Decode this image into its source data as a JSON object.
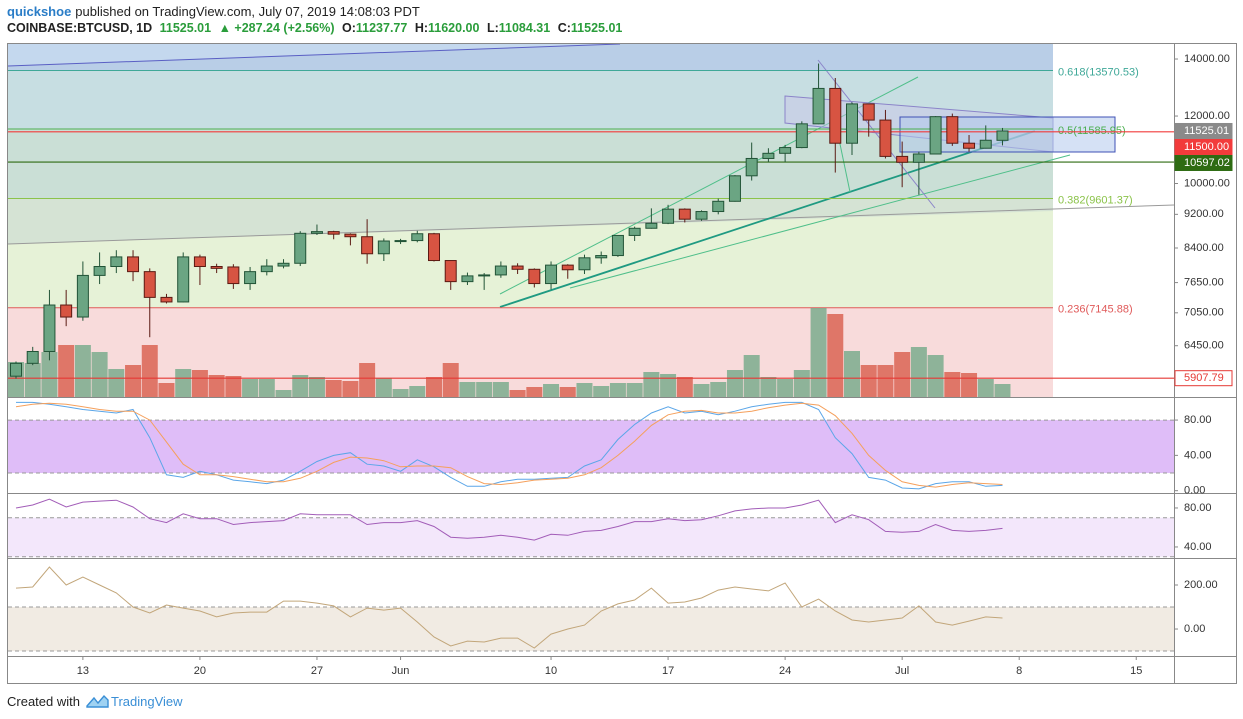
{
  "header": {
    "author": "quickshoe",
    "published": "published on TradingView.com, July 07, 2019 14:08:03 PDT",
    "symbol": "COINBASE:BTCUSD, 1D",
    "price": "11525.01",
    "change": "▲ +287.24 (+2.56%)",
    "ohlc": [
      {
        "key": "O:",
        "value": "11237.77"
      },
      {
        "key": "H:",
        "value": "11620.00"
      },
      {
        "key": "L:",
        "value": "11084.31"
      },
      {
        "key": "C:",
        "value": "11525.01"
      }
    ]
  },
  "footer": {
    "created": "Created with",
    "brand": "TradingView"
  },
  "chart_data": [
    {
      "type": "candlestick",
      "log_scale": true,
      "up_color": "#6ba583",
      "down_color": "#d75442",
      "up_border": "#225437",
      "down_border": "#5b1a13",
      "categories": [
        "05-09",
        "05-10",
        "05-11",
        "05-12",
        "05-13",
        "05-14",
        "05-15",
        "05-16",
        "05-17",
        "05-18",
        "05-19",
        "05-20",
        "05-21",
        "05-22",
        "05-23",
        "05-24",
        "05-25",
        "05-26",
        "05-27",
        "05-28",
        "05-29",
        "05-30",
        "05-31",
        "06-01",
        "06-02",
        "06-03",
        "06-04",
        "06-05",
        "06-06",
        "06-07",
        "06-08",
        "06-09",
        "06-10",
        "06-11",
        "06-12",
        "06-13",
        "06-14",
        "06-15",
        "06-16",
        "06-17",
        "06-18",
        "06-19",
        "06-20",
        "06-21",
        "06-22",
        "06-23",
        "06-24",
        "06-25",
        "06-26",
        "06-27",
        "06-28",
        "06-29",
        "06-30",
        "07-01",
        "07-02",
        "07-03",
        "07-04",
        "07-05",
        "07-06",
        "07-07"
      ],
      "open": [
        5940,
        6150,
        6350,
        7200,
        6970,
        7800,
        7990,
        8200,
        7880,
        7350,
        7260,
        8200,
        7990,
        7980,
        7630,
        7880,
        8000,
        8060,
        8740,
        8780,
        8720,
        8660,
        8270,
        8560,
        8570,
        8730,
        8120,
        7670,
        7790,
        7810,
        8000,
        7930,
        7630,
        8020,
        7920,
        8180,
        8230,
        8690,
        8860,
        8980,
        9330,
        9080,
        9270,
        9530,
        10210,
        10700,
        10850,
        11020,
        11750,
        12930,
        11150,
        12400,
        11870,
        10760,
        10590,
        10830,
        11980,
        11150,
        11000,
        11237.77
      ],
      "high": [
        6180,
        6430,
        7500,
        7500,
        8100,
        8300,
        8350,
        8350,
        7950,
        7420,
        8300,
        8250,
        8050,
        8040,
        7980,
        8150,
        8150,
        8790,
        8950,
        8800,
        8740,
        9080,
        8620,
        8610,
        8800,
        8750,
        8120,
        7860,
        7850,
        8100,
        8060,
        7950,
        8100,
        8040,
        8250,
        8320,
        8700,
        8900,
        9350,
        9440,
        9350,
        9300,
        9600,
        10230,
        11170,
        11000,
        11100,
        11830,
        13830,
        13300,
        12450,
        12400,
        12200,
        11200,
        10900,
        12000,
        12080,
        11400,
        11700,
        11620
      ],
      "low": [
        5900,
        6120,
        6200,
        6800,
        6900,
        7620,
        7850,
        7680,
        6600,
        7230,
        7250,
        7600,
        7850,
        7520,
        7500,
        7800,
        7950,
        8000,
        8700,
        8600,
        8460,
        8050,
        8110,
        8490,
        8530,
        8100,
        7500,
        7600,
        7500,
        7750,
        7830,
        7550,
        7510,
        7730,
        7830,
        8050,
        8200,
        8560,
        8850,
        8960,
        9000,
        9040,
        9200,
        9520,
        10080,
        10600,
        10600,
        11000,
        11740,
        10300,
        10800,
        11350,
        10700,
        9900,
        9700,
        10830,
        11070,
        10900,
        10990,
        11084.31
      ],
      "close": [
        6150,
        6350,
        7200,
        6970,
        7800,
        7990,
        8200,
        7880,
        7350,
        7260,
        8200,
        7990,
        7950,
        7630,
        7880,
        8000,
        8060,
        8740,
        8780,
        8720,
        8660,
        8270,
        8560,
        8570,
        8730,
        8120,
        7670,
        7790,
        7810,
        8000,
        7930,
        7630,
        8020,
        7920,
        8180,
        8230,
        8690,
        8860,
        8980,
        9330,
        9080,
        9270,
        9530,
        10210,
        10700,
        10850,
        11020,
        11750,
        12930,
        11150,
        12400,
        11870,
        10760,
        10590,
        10830,
        11980,
        11150,
        11000,
        11240,
        11525.01
      ],
      "volume": [
        35,
        34,
        45,
        52,
        52,
        45,
        28,
        32,
        52,
        14,
        28,
        27,
        22,
        21,
        18,
        18,
        7,
        22,
        20,
        17,
        16,
        34,
        19,
        8,
        11,
        20,
        34,
        15,
        15,
        15,
        7,
        10,
        13,
        10,
        14,
        11,
        14,
        14,
        25,
        23,
        20,
        13,
        15,
        27,
        42,
        20,
        18,
        27,
        89,
        83,
        46,
        32,
        32,
        45,
        50,
        42,
        25,
        24,
        18,
        13
      ],
      "volume_ylim": [
        0,
        100
      ],
      "ylim": [
        5615,
        14580
      ],
      "yticks": [
        {
          "value": 14000,
          "label": "14000.00"
        },
        {
          "value": 12000,
          "label": "12000.00"
        },
        {
          "value": 10000,
          "label": "10000.00"
        },
        {
          "value": 9200,
          "label": "9200.00"
        },
        {
          "value": 8400,
          "label": "8400.00"
        },
        {
          "value": 7650,
          "label": "7650.00"
        },
        {
          "value": 7050,
          "label": "7050.00"
        },
        {
          "value": 6450,
          "label": "6450.00"
        }
      ],
      "xticks": [
        {
          "value": "05-13",
          "label": "13"
        },
        {
          "value": "05-20",
          "label": "20"
        },
        {
          "value": "05-27",
          "label": "27"
        },
        {
          "value": "06-01",
          "label": "Jun"
        },
        {
          "value": "06-10",
          "label": "10"
        },
        {
          "value": "06-17",
          "label": "17"
        },
        {
          "value": "06-24",
          "label": "24"
        },
        {
          "value": "07-01",
          "label": "Jul"
        },
        {
          "value": "07-08",
          "label": "8"
        },
        {
          "value": "07-15",
          "label": "15"
        }
      ],
      "fib_levels": [
        {
          "value": 13570.53,
          "label": "0.618(13570.53)",
          "color": "#3fa898"
        },
        {
          "value": 11585.95,
          "label": "0.5(11585.95)",
          "color": "#4caf50"
        },
        {
          "value": 9601.37,
          "label": "0.382(9601.37)",
          "color": "#8bc34a"
        },
        {
          "value": 7145.88,
          "label": "0.236(7145.88)",
          "color": "#e05a5a"
        }
      ],
      "price_markers": [
        {
          "value": 11525.01,
          "label": "11525.01",
          "color": "#8a8a8a",
          "filled": true,
          "line": false
        },
        {
          "value": 11500,
          "label": "11500.00",
          "color": "#f23b3b",
          "filled": true,
          "line": true
        },
        {
          "value": 10597.02,
          "label": "10597.02",
          "color": "#2e6b12",
          "filled": true,
          "line": true
        },
        {
          "value": 5907.79,
          "label": "5907.79",
          "color": "#e53935",
          "filled": false,
          "line": true
        }
      ]
    },
    {
      "type": "line",
      "ylim": [
        -1.5,
        105
      ],
      "yticks": [
        {
          "value": 80,
          "label": "80.00"
        },
        {
          "value": 40,
          "label": "40.00"
        },
        {
          "value": 0,
          "label": "0.00"
        }
      ],
      "band": [
        20,
        80
      ],
      "band_color": "#d9b2f7",
      "series": [
        {
          "color": "#5ba6e8",
          "values": [
            100,
            100,
            98,
            95,
            92,
            90,
            88,
            92,
            60,
            18,
            15,
            22,
            18,
            12,
            10,
            8,
            12,
            22,
            33,
            40,
            43,
            30,
            28,
            22,
            35,
            27,
            15,
            5,
            5,
            10,
            13,
            13,
            14,
            15,
            28,
            35,
            58,
            75,
            88,
            95,
            88,
            90,
            86,
            90,
            95,
            98,
            100,
            100,
            92,
            60,
            42,
            15,
            12,
            3,
            2,
            8,
            10,
            10,
            5,
            6
          ]
        },
        {
          "color": "#f5a05c",
          "values": [
            95,
            98,
            99,
            98,
            95,
            92,
            90,
            90,
            80,
            55,
            30,
            18,
            18,
            16,
            13,
            10,
            10,
            14,
            22,
            32,
            38,
            37,
            34,
            27,
            28,
            28,
            26,
            16,
            8,
            7,
            9,
            12,
            13,
            14,
            18,
            26,
            40,
            56,
            74,
            86,
            90,
            91,
            88,
            88,
            90,
            94,
            97,
            99,
            97,
            85,
            65,
            40,
            23,
            10,
            6,
            4,
            7,
            9,
            8,
            7
          ]
        }
      ]
    },
    {
      "type": "line",
      "ylim": [
        29.7,
        93.3
      ],
      "yticks": [
        {
          "value": 80,
          "label": "80.00"
        },
        {
          "value": 40,
          "label": "40.00"
        }
      ],
      "band": [
        30,
        70
      ],
      "band_color": "#f1e3fa",
      "series": [
        {
          "color": "#a25db8",
          "values": [
            80,
            83,
            89,
            81,
            86,
            87,
            88,
            81,
            69,
            65,
            74,
            69,
            69,
            63,
            65,
            66,
            67,
            74,
            73,
            73,
            73,
            63,
            65,
            65,
            67,
            61,
            50,
            49,
            50,
            52,
            50,
            47,
            53,
            52,
            56,
            57,
            61,
            66,
            66,
            69,
            67,
            68,
            72,
            77,
            79,
            80,
            80,
            83,
            88,
            65,
            73,
            68,
            56,
            55,
            56,
            63,
            57,
            56,
            57,
            59
          ]
        }
      ]
    },
    {
      "type": "line",
      "ylim": [
        -118,
        313.6
      ],
      "yticks": [
        {
          "value": 200,
          "label": "200.00"
        },
        {
          "value": 0,
          "label": "0.00"
        }
      ],
      "band": [
        -100,
        100
      ],
      "band_color": "#efe8de",
      "series": [
        {
          "color": "#c2a67a",
          "values": [
            186,
            191,
            282,
            200,
            236,
            200,
            164,
            100,
            73,
            109,
            95,
            82,
            55,
            73,
            77,
            77,
            127,
            127,
            118,
            105,
            55,
            95,
            86,
            95,
            32,
            -36,
            -77,
            -55,
            -59,
            -41,
            -41,
            -86,
            -23,
            0,
            18,
            82,
            114,
            132,
            186,
            118,
            123,
            141,
            177,
            191,
            182,
            173,
            209,
            100,
            136,
            82,
            41,
            32,
            41,
            50,
            105,
            32,
            18,
            36,
            55,
            50
          ]
        }
      ]
    }
  ]
}
